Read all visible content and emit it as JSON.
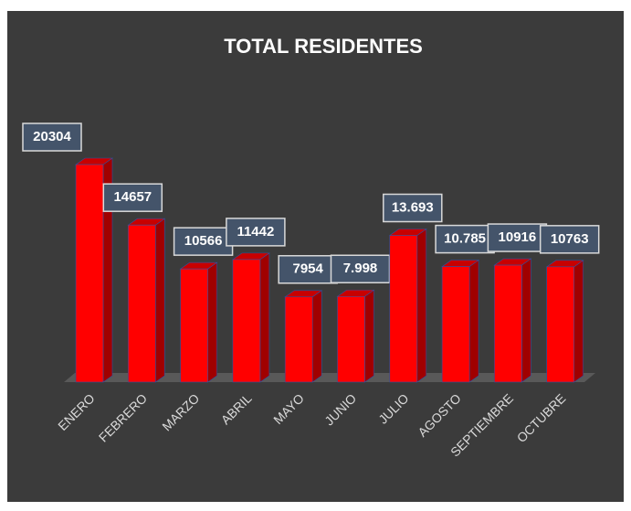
{
  "chart_data": {
    "type": "bar3d",
    "title": "TOTAL RESIDENTES",
    "categories": [
      "ENERO",
      "FEBRERO",
      "MARZO",
      "ABRIL",
      "MAYO",
      "JUNIO",
      "JULIO",
      "AGOSTO",
      "SEPTIEMBRE",
      "OCTUBRE"
    ],
    "values": [
      20304,
      14657,
      10566,
      11442,
      7954,
      7998,
      13693,
      10785,
      10916,
      10763
    ],
    "value_labels": [
      "20304",
      "14657",
      "10566",
      "11442",
      "7954",
      "7.998",
      "13.693",
      "10.785",
      "10916",
      "10763"
    ],
    "color": "#ff0000"
  }
}
